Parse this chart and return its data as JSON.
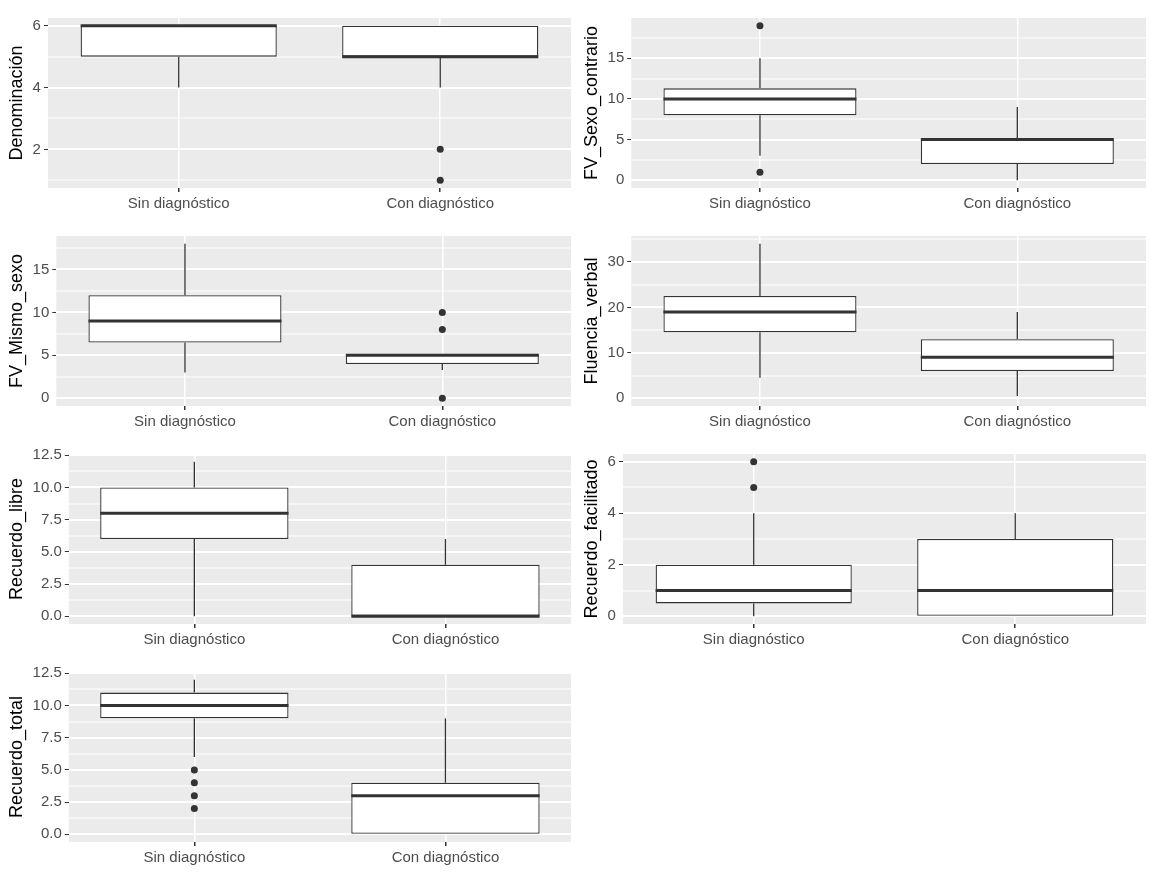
{
  "chart_data": [
    {
      "type": "box",
      "ylabel": "Denominación",
      "categories": [
        "Sin diagnóstico",
        "Con diagnóstico"
      ],
      "boxes": [
        {
          "low": 4,
          "q1": 5,
          "median": 6,
          "q3": 6,
          "high": 6
        },
        {
          "low": 4,
          "q1": 5,
          "median": 5,
          "q3": 6,
          "high": 6,
          "outliers": [
            2,
            1
          ]
        }
      ],
      "ylim": [
        0.75,
        6.25
      ],
      "yticks": [
        {
          "value": 1,
          "label": null
        },
        2,
        {
          "value": 3,
          "label": null
        },
        4,
        {
          "value": 5,
          "label": null
        },
        6
      ],
      "grid": true
    },
    {
      "type": "box",
      "ylabel": "FV_Sexo_contrario",
      "categories": [
        "Sin diagnóstico",
        "Con diagnóstico"
      ],
      "boxes": [
        {
          "low": 3,
          "q1": 8,
          "median": 10,
          "q3": 11.3,
          "high": 15,
          "outliers": [
            19,
            1
          ]
        },
        {
          "low": 0,
          "q1": 2,
          "median": 5,
          "q3": 5,
          "high": 9
        }
      ],
      "ylim": [
        -0.95,
        19.95
      ],
      "yticks": [
        0,
        {
          "value": 2.5,
          "label": null
        },
        5,
        {
          "value": 7.5,
          "label": null
        },
        10,
        {
          "value": 12.5,
          "label": null
        },
        15,
        {
          "value": 17.5,
          "label": null
        }
      ],
      "grid": true
    },
    {
      "type": "box",
      "ylabel": "FV_Mismo_sexo",
      "categories": [
        "Sin diagnóstico",
        "Con diagnóstico"
      ],
      "boxes": [
        {
          "low": 3,
          "q1": 6.5,
          "median": 9,
          "q3": 12,
          "high": 18
        },
        {
          "low": 3.3,
          "q1": 4,
          "median": 5,
          "q3": 5.1,
          "high": 5.1,
          "outliers": [
            10,
            8,
            0
          ]
        }
      ],
      "ylim": [
        -0.9,
        18.9
      ],
      "yticks": [
        0,
        {
          "value": 2.5,
          "label": null
        },
        5,
        {
          "value": 7.5,
          "label": null
        },
        10,
        {
          "value": 12.5,
          "label": null
        },
        15,
        {
          "value": 17.5,
          "label": null
        }
      ],
      "grid": true
    },
    {
      "type": "box",
      "ylabel": "Fluencia_verbal",
      "categories": [
        "Sin diagnóstico",
        "Con diagnóstico"
      ],
      "boxes": [
        {
          "low": 4.5,
          "q1": 14.5,
          "median": 19,
          "q3": 22.5,
          "high": 34
        },
        {
          "low": 0.5,
          "q1": 6,
          "median": 9,
          "q3": 13,
          "high": 19
        }
      ],
      "ylim": [
        -1.7,
        35.7
      ],
      "yticks": [
        0,
        {
          "value": 5,
          "label": null
        },
        10,
        {
          "value": 15,
          "label": null
        },
        20,
        {
          "value": 25,
          "label": null
        },
        30,
        {
          "value": 35,
          "label": null
        }
      ],
      "grid": true
    },
    {
      "type": "box",
      "ylabel": "Recuerdo_libre",
      "categories": [
        "Sin diagnóstico",
        "Con diagnóstico"
      ],
      "boxes": [
        {
          "low": 0,
          "q1": 6,
          "median": 8,
          "q3": 10,
          "high": 12
        },
        {
          "low": 0,
          "q1": 0,
          "median": 0,
          "q3": 4,
          "high": 6
        }
      ],
      "ylim": [
        -0.6,
        12.6
      ],
      "yticks": [
        {
          "value": 0,
          "label": "0.0"
        },
        {
          "value": 1.25,
          "label": null
        },
        2.5,
        {
          "value": 3.75,
          "label": null
        },
        {
          "value": 5,
          "label": "5.0"
        },
        {
          "value": 6.25,
          "label": null
        },
        7.5,
        {
          "value": 8.75,
          "label": null
        },
        {
          "value": 10,
          "label": "10.0"
        },
        {
          "value": 11.25,
          "label": null
        },
        12.5
      ],
      "grid": true
    },
    {
      "type": "box",
      "ylabel": "Recuerdo_facilitado",
      "categories": [
        "Sin diagnóstico",
        "Con diagnóstico"
      ],
      "boxes": [
        {
          "low": 0,
          "q1": 0.5,
          "median": 1,
          "q3": 2,
          "high": 4,
          "outliers": [
            5,
            6
          ]
        },
        {
          "low": 0,
          "q1": 0,
          "median": 1,
          "q3": 3,
          "high": 4
        }
      ],
      "ylim": [
        -0.3,
        6.3
      ],
      "yticks": [
        0,
        {
          "value": 1,
          "label": null
        },
        2,
        {
          "value": 3,
          "label": null
        },
        4,
        {
          "value": 5,
          "label": null
        },
        6
      ],
      "grid": true
    },
    {
      "type": "box",
      "ylabel": "Recuerdo_total",
      "categories": [
        "Sin diagnóstico",
        "Con diagnóstico"
      ],
      "boxes": [
        {
          "low": 6,
          "q1": 9,
          "median": 10,
          "q3": 11,
          "high": 12,
          "outliers": [
            5,
            4,
            3,
            2
          ]
        },
        {
          "low": 0,
          "q1": 0,
          "median": 3,
          "q3": 4,
          "high": 9
        }
      ],
      "ylim": [
        -0.6,
        12.6
      ],
      "yticks": [
        {
          "value": 0,
          "label": "0.0"
        },
        {
          "value": 1.25,
          "label": null
        },
        2.5,
        {
          "value": 3.75,
          "label": null
        },
        {
          "value": 5,
          "label": "5.0"
        },
        {
          "value": 6.25,
          "label": null
        },
        7.5,
        {
          "value": 8.75,
          "label": null
        },
        {
          "value": 10,
          "label": "10.0"
        },
        {
          "value": 11.25,
          "label": null
        },
        12.5
      ],
      "grid": true
    }
  ]
}
